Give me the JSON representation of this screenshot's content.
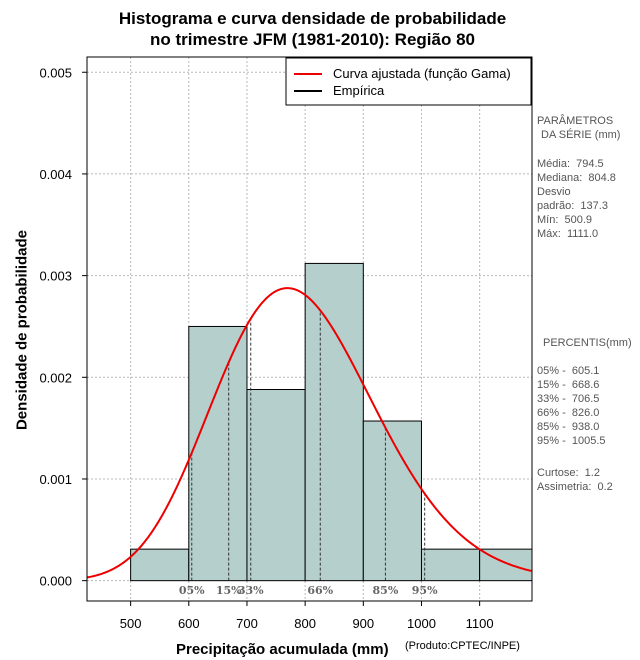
{
  "header": {
    "title_line1": "Histograma e curva densidade de probabilidade",
    "title_line2": "no trimestre JFM (1981-2010): Região 80"
  },
  "chart_data": {
    "type": "bar",
    "title": "Histograma e curva densidade de probabilidade no trimestre JFM (1981-2010): Região 80",
    "xlabel": "Precipitação acumulada (mm)",
    "ylabel": "Densidade de probabilidade",
    "xlim": [
      425,
      1190
    ],
    "ylim": [
      -0.0002,
      0.00515
    ],
    "x_ticks": [
      500,
      600,
      700,
      800,
      900,
      1000,
      1100
    ],
    "y_ticks": [
      0.0,
      0.001,
      0.002,
      0.003,
      0.004,
      0.005
    ],
    "y_tick_labels": [
      "0.000",
      "0.001",
      "0.002",
      "0.003",
      "0.004",
      "0.005"
    ],
    "grid": true,
    "legend_position": "top-right",
    "bins": [
      {
        "x0": 500,
        "x1": 600,
        "density": 0.00031
      },
      {
        "x0": 600,
        "x1": 700,
        "density": 0.0025
      },
      {
        "x0": 700,
        "x1": 800,
        "density": 0.00188
      },
      {
        "x0": 800,
        "x1": 900,
        "density": 0.00312
      },
      {
        "x0": 900,
        "x1": 1000,
        "density": 0.00157
      },
      {
        "x0": 1000,
        "x1": 1100,
        "density": 0.00031
      },
      {
        "x0": 1100,
        "x1": 1190,
        "density": 0.00031
      }
    ],
    "gamma_fit": {
      "shape": 31.97,
      "scale": 24.85
    },
    "percentile_markers": [
      {
        "label": "05%",
        "value": 605.1
      },
      {
        "label": "15%",
        "value": 668.6
      },
      {
        "label": "33%",
        "value": 706.5
      },
      {
        "label": "66%",
        "value": 826.0
      },
      {
        "label": "85%",
        "value": 938.0
      },
      {
        "label": "95%",
        "value": 1005.5
      }
    ],
    "legend": [
      {
        "label": "Curva ajustada (função Gama)",
        "color": "#ee0000"
      },
      {
        "label": "Empírica",
        "color": "#000000"
      }
    ],
    "colors": {
      "bar_fill": "#b5cfcd",
      "curve": "#ee0000",
      "grid": "#b8b8b8",
      "percentile_text": "#666666"
    }
  },
  "footer": {
    "xlabel": "Precipitação acumulada (mm)",
    "credit": "(Produto:CPTEC/INPE)"
  },
  "params": {
    "heading_line1": "PARÂMETROS",
    "heading_line2": "DA SÉRIE (mm)",
    "media": "Média:  794.5",
    "mediana": "Mediana:  804.8",
    "desvio_line1": "Desvio",
    "desvio_line2": "padrão:  137.3",
    "min": "Mín:  500.9",
    "max": "Máx:  1111.0"
  },
  "percentis": {
    "heading": "PERCENTIS(mm)",
    "rows": [
      "05% -  605.1",
      "15% -  668.6",
      "33% -  706.5",
      "66% -  826.0",
      "85% -  938.0",
      "95% -  1005.5"
    ],
    "curtose": "Curtose:  1.2",
    "assimetria": "Assimetria:  0.2"
  }
}
